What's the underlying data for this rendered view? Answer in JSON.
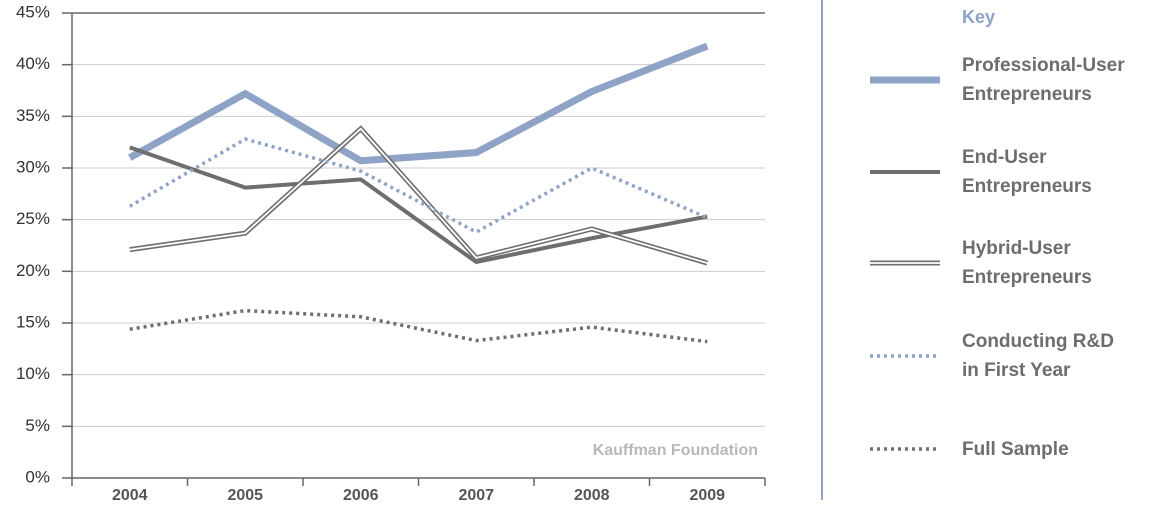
{
  "chart_data": {
    "type": "line",
    "categories": [
      "2004",
      "2005",
      "2006",
      "2007",
      "2008",
      "2009"
    ],
    "series": [
      {
        "name": "Professional-User\nEntrepreneurs",
        "color": "#8ea3c6",
        "line_style": "thick",
        "values": [
          31,
          37.2,
          30.7,
          31.5,
          37.4,
          41.8
        ]
      },
      {
        "name": "End-User\nEntrepreneurs",
        "color": "#6e6e6e",
        "line_style": "solid",
        "values": [
          32,
          28.1,
          28.9,
          20.9,
          23.2,
          25.3
        ]
      },
      {
        "name": "Hybrid-User\nEntrepreneurs",
        "color": "#6e6e6e",
        "line_style": "double",
        "values": [
          22.1,
          23.7,
          33.8,
          21.3,
          24.1,
          20.8
        ]
      },
      {
        "name": "Conducting R&D\nin First Year",
        "color": "#8ea3c6",
        "line_style": "dotted",
        "values": [
          26.3,
          32.8,
          29.7,
          23.8,
          30,
          25.2
        ]
      },
      {
        "name": "Full Sample",
        "color": "#6e6e6e",
        "line_style": "dotted",
        "values": [
          14.4,
          16.2,
          15.6,
          13.3,
          14.6,
          13.2
        ]
      }
    ],
    "ylim": [
      0,
      45
    ],
    "yticks": [
      {
        "value": 0,
        "label": "0%"
      },
      {
        "value": 5,
        "label": "5%"
      },
      {
        "value": 10,
        "label": "10%"
      },
      {
        "value": 15,
        "label": "15%"
      },
      {
        "value": 20,
        "label": "20%"
      },
      {
        "value": 25,
        "label": "25%"
      },
      {
        "value": 30,
        "label": "30%"
      },
      {
        "value": 35,
        "label": "35%"
      },
      {
        "value": 40,
        "label": "40%"
      },
      {
        "value": 45,
        "label": "45%"
      }
    ],
    "grid": true,
    "legend_title": "Key",
    "legend_position": "right",
    "annotation": "Kauffman Foundation"
  }
}
